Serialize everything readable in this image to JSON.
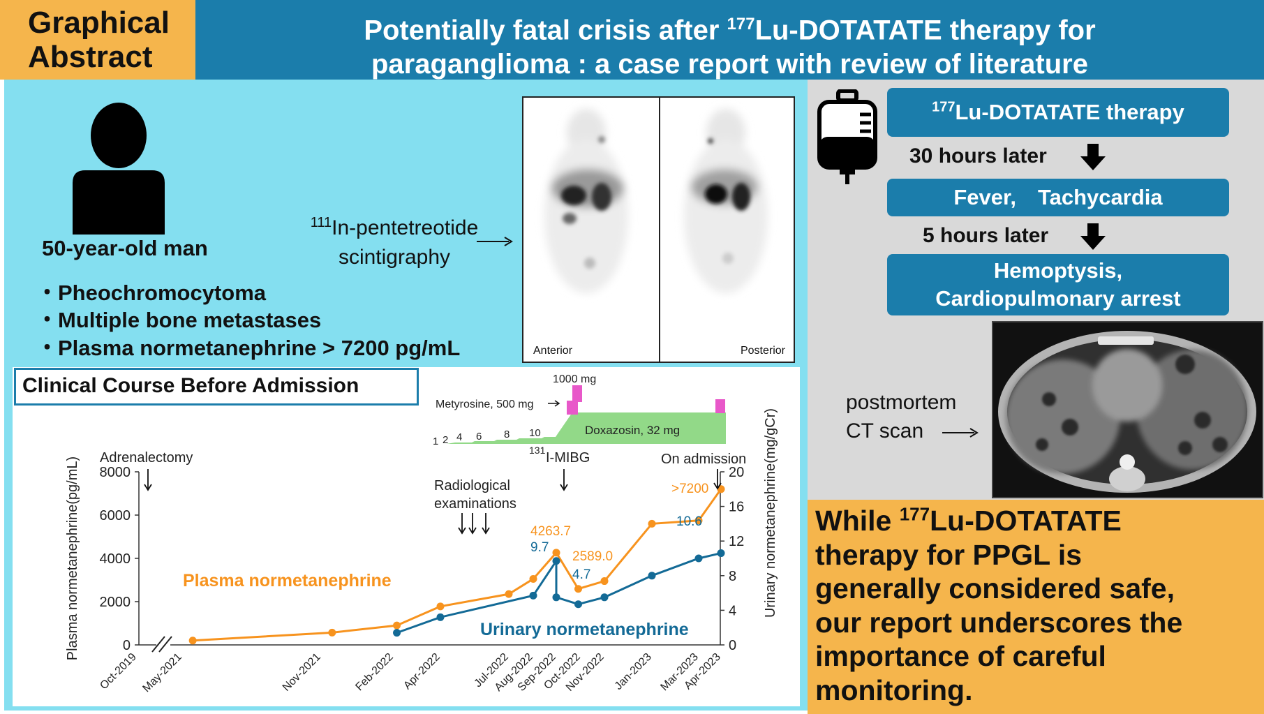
{
  "header": {
    "badge": [
      "Graphical",
      "Abstract"
    ],
    "title_line1_pre": "Potentially fatal crisis after ",
    "title_sup": "177",
    "title_line1_post": "Lu-DOTATATE therapy for",
    "title_line2": "paraganglioma : a case report with review of literature"
  },
  "patient": {
    "icon": "person-icon",
    "age": "50-year-old man",
    "findings": [
      "・Pheochromocytoma",
      "・Multiple bone metastases",
      "・Plasma normetanephrine > 7200 pg/mL"
    ]
  },
  "scintigraphy": {
    "label_sup": "111",
    "label_line1": "In-pentetreotide",
    "label_line2": "scintigraphy",
    "view_left": "Anterior",
    "view_right": "Posterior"
  },
  "timeline": {
    "icon": "iv-bag-icon",
    "steps": [
      {
        "sup": "177",
        "text": "Lu-DOTATATE therapy"
      },
      {
        "text": "Fever,　Tachycardia"
      },
      {
        "text": "Hemoptysis,",
        "text2": "Cardiopulmonary arrest"
      }
    ],
    "intervals": [
      "30 hours later",
      "5 hours later"
    ],
    "postmortem_line1": "postmortem",
    "postmortem_line2": "CT scan"
  },
  "conclusion": {
    "pre": "While ",
    "sup": "177",
    "post_first": "Lu-DOTATATE",
    "lines": [
      "therapy for PPGL is",
      "generally considered safe,",
      "our report underscores the",
      "importance of careful",
      "monitoring."
    ]
  },
  "chart_data": {
    "type": "line",
    "title": "Clinical Course Before Admission",
    "ylabel_left": "Plasma normetanephrine(pg/mL)",
    "ylabel_right": "Urinary normetanephrine(mg/gCr)",
    "ylim_left": [
      0,
      8000
    ],
    "ylim_right": [
      0,
      20
    ],
    "yticks_left": [
      0,
      2000,
      4000,
      6000,
      8000
    ],
    "yticks_right": [
      0,
      4,
      8,
      12,
      16,
      20
    ],
    "xticks": [
      "Oct-2019",
      "May-2021",
      "Nov-2021",
      "Feb-2022",
      "Apr-2022",
      "Jul-2022",
      "Aug-2022",
      "Sep-2022",
      "Oct-2022",
      "Nov-2022",
      "Jan-2023",
      "Mar-2023",
      "Apr-2023"
    ],
    "series": [
      {
        "name": "Plasma normetanephrine",
        "color": "#f7931e",
        "axis": "left",
        "points": [
          {
            "x": "2021-05-15",
            "y": 200
          },
          {
            "x": "2021-11-15",
            "y": 570
          },
          {
            "x": "2022-02-05",
            "y": 900
          },
          {
            "x": "2022-04-01",
            "y": 1780
          },
          {
            "x": "2022-07-01",
            "y": 2350
          },
          {
            "x": "2022-08-01",
            "y": 3050
          },
          {
            "x": "2022-09-01",
            "y": 4263.7
          },
          {
            "x": "2022-09-28",
            "y": 2589.0
          },
          {
            "x": "2022-11-01",
            "y": 2950
          },
          {
            "x": "2023-01-01",
            "y": 5600
          },
          {
            "x": "2023-03-01",
            "y": 5750
          },
          {
            "x": "2023-04-01",
            "y": 7200
          }
        ]
      },
      {
        "name": "Urinary normetanephrine",
        "color": "#136a96",
        "axis": "right",
        "points": [
          {
            "x": "2022-02-05",
            "y": 1.4
          },
          {
            "x": "2022-04-01",
            "y": 3.2
          },
          {
            "x": "2022-08-01",
            "y": 5.7
          },
          {
            "x": "2022-09-01",
            "y": 9.7
          },
          {
            "x": "2022-09-01",
            "y": 5.5
          },
          {
            "x": "2022-09-28",
            "y": 4.7
          },
          {
            "x": "2022-11-01",
            "y": 5.5
          },
          {
            "x": "2023-01-01",
            "y": 8.0
          },
          {
            "x": "2023-03-01",
            "y": 10.0
          },
          {
            "x": "2023-04-01",
            "y": 10.6
          }
        ]
      }
    ],
    "data_labels": [
      {
        "text": "4263.7",
        "color": "#f7931e"
      },
      {
        "text": "2589.0",
        "color": "#f7931e"
      },
      {
        "text": ">7200",
        "color": "#f7931e"
      },
      {
        "text": "9.7",
        "color": "#136a96"
      },
      {
        "text": "4.7",
        "color": "#136a96"
      },
      {
        "text": "10.6",
        "color": "#136a96"
      }
    ],
    "annotations": [
      "Adrenalectomy",
      "Radiological",
      "examinations",
      "131",
      "I-MIBG",
      "On admission"
    ],
    "medications": {
      "metyrosine": "Metyrosine, 500 mg",
      "metyrosine_peak": "1000 mg",
      "doxazosin": "Doxazosin, 32 mg",
      "dose_steps": [
        "1",
        "2",
        "4",
        "6",
        "8",
        "10"
      ],
      "doxazosin_color": "#92d988",
      "metyrosine_color": "#e858c9"
    }
  }
}
